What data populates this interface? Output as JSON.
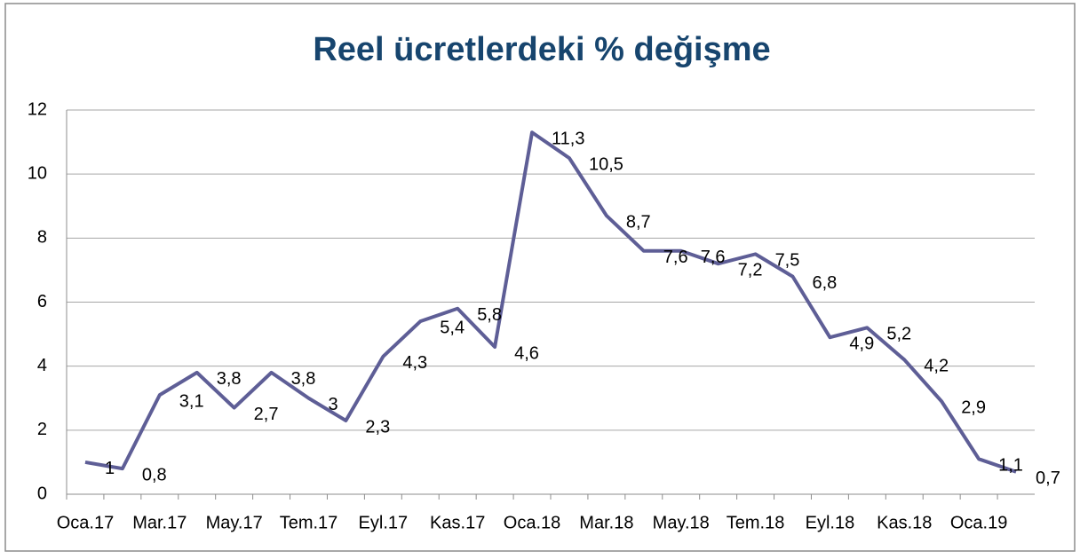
{
  "chart_data": {
    "type": "line",
    "title": "Reel ücretlerdeki % değişme",
    "categories": [
      "Oca.17",
      null,
      "Mar.17",
      null,
      "May.17",
      null,
      "Tem.17",
      null,
      "Eyl.17",
      null,
      "Kas.17",
      null,
      "Oca.18",
      null,
      "Mar.18",
      null,
      "May.18",
      null,
      "Tem.18",
      null,
      "Eyl.18",
      null,
      "Kas.18",
      null,
      "Oca.19",
      null
    ],
    "series": [
      {
        "name": "Reel ücretlerdeki % değişme",
        "color": "#5e5e96",
        "values": [
          1,
          0.8,
          3.1,
          3.8,
          2.7,
          3.8,
          3,
          2.3,
          4.3,
          5.4,
          5.8,
          4.6,
          11.3,
          10.5,
          8.7,
          7.6,
          7.6,
          7.2,
          7.5,
          6.8,
          4.9,
          5.2,
          4.2,
          2.9,
          1.1,
          0.7
        ],
        "value_labels": [
          "1",
          "0,8",
          "3,1",
          "3,8",
          "2,7",
          "3,8",
          "3",
          "2,3",
          "4,3",
          "5,4",
          "5,8",
          "4,6",
          "11,3",
          "10,5",
          "8,7",
          "7,6",
          "7,6",
          "7,2",
          "7,5",
          "6,8",
          "4,9",
          "5,2",
          "4,2",
          "2,9",
          "1,1",
          "0,7"
        ]
      }
    ],
    "ylim": [
      0,
      12
    ],
    "yticks": [
      0,
      2,
      4,
      6,
      8,
      10,
      12
    ],
    "grid": true
  }
}
